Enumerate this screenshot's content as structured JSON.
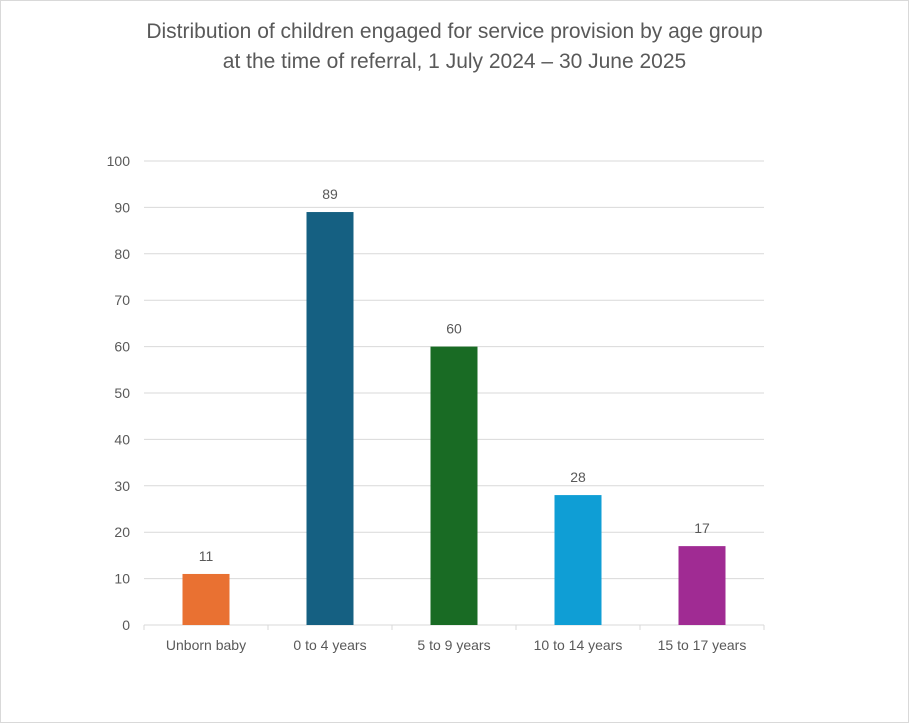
{
  "chart_data": {
    "type": "bar",
    "title_lines": [
      "Distribution of children engaged for service provision by age group",
      "at the time of referral, 1 July 2024 – 30 June 2025"
    ],
    "categories": [
      "Unborn baby",
      "0 to 4 years",
      "5 to 9 years",
      "10 to 14 years",
      "15 to 17 years"
    ],
    "values": [
      11,
      89,
      60,
      28,
      17
    ],
    "colors": [
      "#E97132",
      "#156082",
      "#196B24",
      "#0F9ED5",
      "#A02B93"
    ],
    "xlabel": "",
    "ylabel": "",
    "ylim": [
      0,
      100
    ],
    "yticks": [
      0,
      10,
      20,
      30,
      40,
      50,
      60,
      70,
      80,
      90,
      100
    ],
    "grid": true,
    "data_labels": true,
    "legend": "none"
  }
}
